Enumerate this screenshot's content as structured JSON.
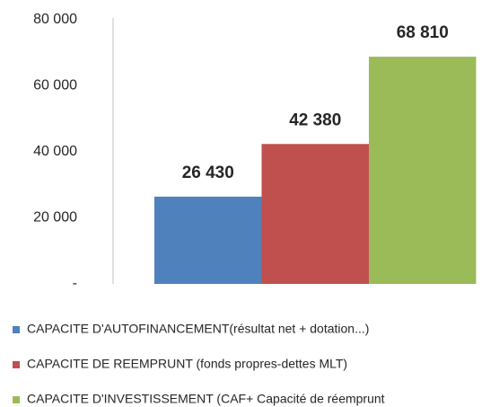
{
  "chart_data": {
    "type": "bar",
    "categories": [
      null
    ],
    "series": [
      {
        "name": "CAPACITE D'AUTOFINANCEMENT(résultat net + dotation...)",
        "color": "#4f81bd",
        "values": [
          26430
        ],
        "value_labels": [
          "26 430"
        ]
      },
      {
        "name": "CAPACITE DE REEMPRUNT (fonds propres-dettes MLT)",
        "color": "#c0504d",
        "values": [
          42380
        ],
        "value_labels": [
          "42 380"
        ]
      },
      {
        "name": "CAPACITE D'INVESTISSEMENT (CAF+ Capacité de réemprunt",
        "color": "#9bbb59",
        "values": [
          68810
        ],
        "value_labels": [
          "68 810"
        ]
      }
    ],
    "ylim": [
      0,
      80000
    ],
    "yticks": [
      {
        "value": 0,
        "label": "-"
      },
      {
        "value": 20000,
        "label": "20 000"
      },
      {
        "value": 40000,
        "label": "40 000"
      },
      {
        "value": 60000,
        "label": "60 000"
      },
      {
        "value": 80000,
        "label": "80 000"
      }
    ],
    "grid": false,
    "legend": "bottom"
  }
}
